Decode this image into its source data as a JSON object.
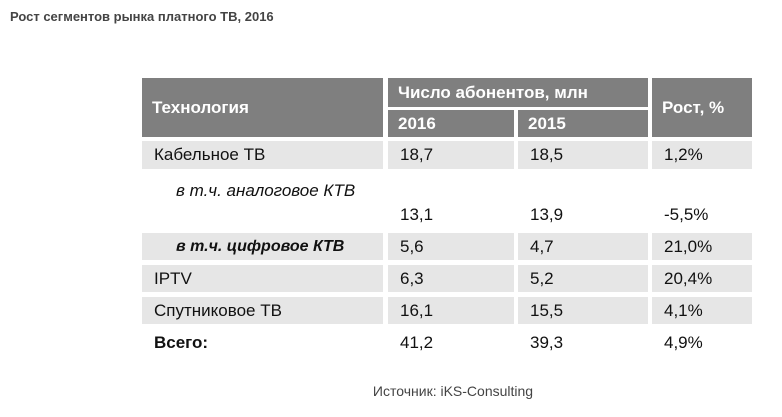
{
  "header": {
    "title": "Рост сегментов рынка платного ТВ, 2016"
  },
  "table": {
    "headers": {
      "technology": "Технология",
      "subscribers": "Число абонентов, млн",
      "year1": "2016",
      "year2": "2015",
      "growth": "Рост, %"
    },
    "rows": [
      [
        "Кабельное ТВ",
        "18,7",
        "18,5",
        "1,2%"
      ],
      [
        "в т.ч. аналоговое КТВ",
        "13,1",
        "13,9",
        "-5,5%"
      ],
      [
        "в т.ч. цифровое КТВ",
        "5,6",
        "4,7",
        "21,0%"
      ],
      [
        "IPTV",
        "6,3",
        "5,2",
        "20,4%"
      ],
      [
        "Спутниковое ТВ",
        "16,1",
        "15,5",
        "4,1%"
      ],
      [
        "Всего:",
        "41,2",
        "39,3",
        "4,9%"
      ]
    ]
  },
  "source": "Источник: iKS-Consulting"
}
